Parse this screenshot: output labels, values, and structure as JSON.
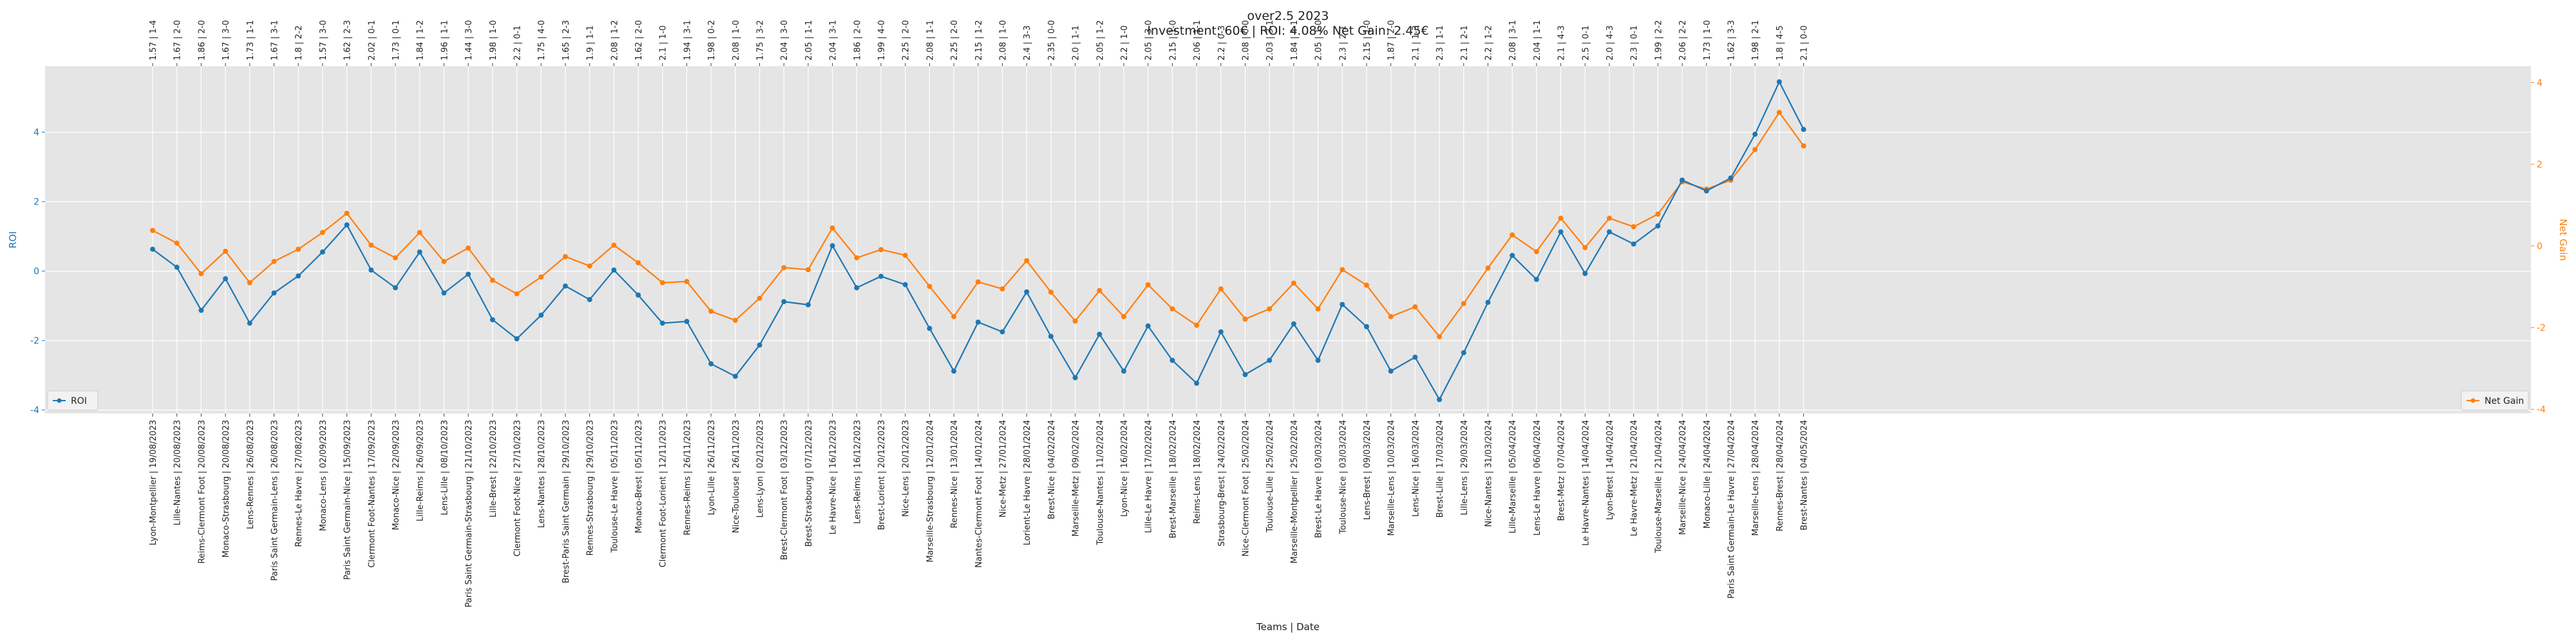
{
  "chart_data": {
    "type": "line",
    "title": "over2.5 2023",
    "subtitle": "Investment: 60€ | ROI: 4.08% Net Gain: 2.45€",
    "xlabel": "Teams | Date",
    "ylabel_left": "ROI",
    "ylabel_right": "Net Gain",
    "ylim_left": [
      -4.1,
      5.9
    ],
    "ylim_right": [
      -4.1,
      4.4
    ],
    "yticks_left": [
      -4,
      -2,
      0,
      2,
      4
    ],
    "yticks_right": [
      -4,
      -2,
      0,
      2,
      4
    ],
    "grid": true,
    "legend_left": "lower-left",
    "legend_right": "lower-right",
    "colors": {
      "roi": "#1f77b4",
      "net_gain": "#ff7f0e",
      "plot_bg": "#e5e5e5",
      "grid": "#ffffff"
    },
    "top_labels": [
      "1.57 | 1-4",
      "1.67 | 2-0",
      "1.86 | 2-0",
      "1.67 | 3-0",
      "1.73 | 1-1",
      "1.67 | 3-1",
      "1.8 | 2-2",
      "1.57 | 3-0",
      "1.62 | 2-3",
      "2.02 | 0-1",
      "1.73 | 0-1",
      "1.84 | 1-2",
      "1.96 | 1-1",
      "1.44 | 3-0",
      "1.98 | 1-0",
      "2.2 | 0-1",
      "1.75 | 4-0",
      "1.65 | 2-3",
      "1.9 | 1-1",
      "2.08 | 1-2",
      "1.62 | 2-0",
      "2.1 | 1-0",
      "1.94 | 3-1",
      "1.98 | 0-2",
      "2.08 | 1-0",
      "1.75 | 3-2",
      "2.04 | 3-0",
      "2.05 | 1-1",
      "2.04 | 3-1",
      "1.86 | 2-0",
      "1.99 | 4-0",
      "2.25 | 2-0",
      "2.08 | 1-1",
      "2.25 | 2-0",
      "2.15 | 1-2",
      "2.08 | 1-0",
      "2.4 | 3-3",
      "2.35 | 0-0",
      "2.0 | 1-1",
      "2.05 | 1-2",
      "2.2 | 1-0",
      "2.05 | 3-0",
      "2.15 | 1-0",
      "2.06 | 1-1",
      "2.2 | 0-3",
      "2.08 | 0-0",
      "2.03 | 3-1",
      "1.84 | 4-1",
      "2.05 | 1-0",
      "2.3 | 2-1",
      "2.15 | 1-0",
      "1.87 | 2-0",
      "2.1 | 1-3",
      "2.3 | 1-1",
      "2.1 | 2-1",
      "2.2 | 1-2",
      "2.08 | 3-1",
      "2.04 | 1-1",
      "2.1 | 4-3",
      "2.5 | 0-1",
      "2.0 | 4-3",
      "2.3 | 0-1",
      "1.99 | 2-2",
      "2.06 | 2-2",
      "1.73 | 1-0",
      "1.62 | 3-3",
      "1.98 | 2-1",
      "1.8 | 4-5",
      "2.1 | 0-0"
    ],
    "categories": [
      "Lyon-Montpellier | 19/08/2023",
      "Lille-Nantes | 20/08/2023",
      "Reims-Clermont Foot | 20/08/2023",
      "Monaco-Strasbourg | 20/08/2023",
      "Lens-Rennes | 26/08/2023",
      "Paris Saint Germain-Lens | 26/08/2023",
      "Rennes-Le Havre | 27/08/2023",
      "Monaco-Lens | 02/09/2023",
      "Paris Saint Germain-Nice | 15/09/2023",
      "Clermont Foot-Nantes | 17/09/2023",
      "Monaco-Nice | 22/09/2023",
      "Lille-Reims | 26/09/2023",
      "Lens-Lille | 08/10/2023",
      "Paris Saint Germain-Strasbourg | 21/10/2023",
      "Lille-Brest | 22/10/2023",
      "Clermont Foot-Nice | 27/10/2023",
      "Lens-Nantes | 28/10/2023",
      "Brest-Paris Saint Germain | 29/10/2023",
      "Rennes-Strasbourg | 29/10/2023",
      "Toulouse-Le Havre | 05/11/2023",
      "Monaco-Brest | 05/11/2023",
      "Clermont Foot-Lorient | 12/11/2023",
      "Rennes-Reims | 26/11/2023",
      "Lyon-Lille | 26/11/2023",
      "Nice-Toulouse | 26/11/2023",
      "Lens-Lyon | 02/12/2023",
      "Brest-Clermont Foot | 03/12/2023",
      "Brest-Strasbourg | 07/12/2023",
      "Le Havre-Nice | 16/12/2023",
      "Lens-Reims | 16/12/2023",
      "Brest-Lorient | 20/12/2023",
      "Nice-Lens | 20/12/2023",
      "Marseille-Strasbourg | 12/01/2024",
      "Rennes-Nice | 13/01/2024",
      "Nantes-Clermont Foot | 14/01/2024",
      "Nice-Metz | 27/01/2024",
      "Lorient-Le Havre | 28/01/2024",
      "Brest-Nice | 04/02/2024",
      "Marseille-Metz | 09/02/2024",
      "Toulouse-Nantes | 11/02/2024",
      "Lyon-Nice | 16/02/2024",
      "Lille-Le Havre | 17/02/2024",
      "Brest-Marseille | 18/02/2024",
      "Reims-Lens | 18/02/2024",
      "Strasbourg-Brest | 24/02/2024",
      "Nice-Clermont Foot | 25/02/2024",
      "Toulouse-Lille | 25/02/2024",
      "Marseille-Montpellier | 25/02/2024",
      "Brest-Le Havre | 03/03/2024",
      "Toulouse-Nice | 03/03/2024",
      "Lens-Brest | 09/03/2024",
      "Marseille-Lens | 10/03/2024",
      "Lens-Nice | 16/03/2024",
      "Brest-Lille | 17/03/2024",
      "Lille-Lens | 29/03/2024",
      "Nice-Nantes | 31/03/2024",
      "Lille-Marseille | 05/04/2024",
      "Lens-Le Havre | 06/04/2024",
      "Brest-Metz | 07/04/2024",
      "Le Havre-Nantes | 14/04/2024",
      "Lyon-Brest | 14/04/2024",
      "Le Havre-Metz | 21/04/2024",
      "Toulouse-Marseille | 21/04/2024",
      "Marseille-Nice | 24/04/2024",
      "Monaco-Lille | 24/04/2024",
      "Paris Saint Germain-Le Havre | 27/04/2024",
      "Marseille-Lens | 28/04/2024",
      "Rennes-Brest | 28/04/2024",
      "Brest-Nantes | 04/05/2024"
    ],
    "series": [
      {
        "name": "ROI",
        "axis": "left",
        "values": [
          0.63,
          0.11,
          -1.13,
          -0.22,
          -1.5,
          -0.63,
          -0.14,
          0.55,
          1.33,
          0.03,
          -0.48,
          0.55,
          -0.63,
          -0.09,
          -1.4,
          -1.95,
          -1.27,
          -0.43,
          -0.82,
          0.03,
          -0.69,
          -1.5,
          -1.45,
          -2.67,
          -3.03,
          -2.13,
          -0.88,
          -0.97,
          0.73,
          -0.48,
          -0.15,
          -0.39,
          -1.65,
          -2.88,
          -1.47,
          -1.75,
          -0.6,
          -1.88,
          -3.07,
          -1.82,
          -2.88,
          -1.58,
          -2.57,
          -3.23,
          -1.75,
          -2.98,
          -2.57,
          -1.52,
          -2.57,
          -0.96,
          -1.6,
          -2.88,
          -2.48,
          -3.7,
          -2.35,
          -0.9,
          0.45,
          -0.24,
          1.13,
          -0.07,
          1.13,
          0.78,
          1.3,
          2.62,
          2.31,
          2.68,
          3.94,
          5.45,
          4.08
        ]
      },
      {
        "name": "Net Gain",
        "axis": "right",
        "values": [
          0.38,
          0.07,
          -0.68,
          -0.13,
          -0.9,
          -0.38,
          -0.08,
          0.33,
          0.8,
          0.02,
          -0.29,
          0.33,
          -0.38,
          -0.05,
          -0.84,
          -1.17,
          -0.76,
          -0.26,
          -0.49,
          0.02,
          -0.41,
          -0.9,
          -0.87,
          -1.6,
          -1.82,
          -1.28,
          -0.53,
          -0.58,
          0.44,
          -0.29,
          -0.09,
          -0.23,
          -0.99,
          -1.73,
          -0.88,
          -1.05,
          -0.36,
          -1.13,
          -1.84,
          -1.09,
          -1.73,
          -0.95,
          -1.54,
          -1.94,
          -1.05,
          -1.79,
          -1.54,
          -0.91,
          -1.54,
          -0.58,
          -0.96,
          -1.73,
          -1.49,
          -2.22,
          -1.41,
          -0.54,
          0.27,
          -0.14,
          0.68,
          -0.04,
          0.68,
          0.47,
          0.78,
          1.57,
          1.39,
          1.61,
          2.36,
          3.27,
          2.45
        ]
      }
    ]
  }
}
